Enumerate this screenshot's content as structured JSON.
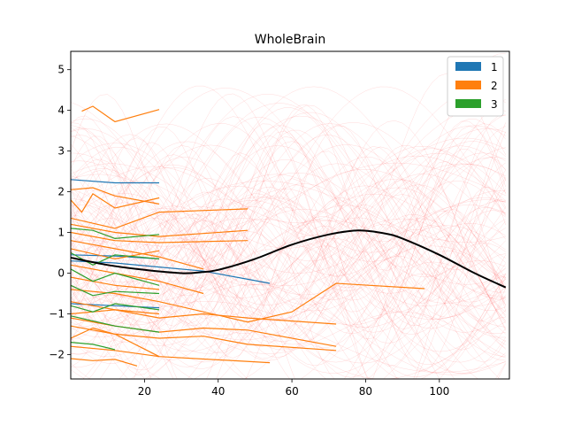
{
  "chart_data": {
    "type": "line",
    "title": "WholeBrain",
    "xlabel": "",
    "ylabel": "",
    "xlim": [
      0,
      119
    ],
    "ylim": [
      -2.6,
      5.45
    ],
    "xticks": [
      20,
      40,
      60,
      80,
      100
    ],
    "yticks": [
      -2,
      -1,
      0,
      1,
      2,
      3,
      4,
      5
    ],
    "grid": false,
    "legend_position": "top-right",
    "legend": [
      {
        "label": "1",
        "color": "#1f77b4"
      },
      {
        "label": "2",
        "color": "#ff7f0e"
      },
      {
        "label": "3",
        "color": "#2ca02c"
      }
    ],
    "background_curves": {
      "color": "#ff0000",
      "opacity": 0.15,
      "count": 130,
      "description_of_form": "thin sinusoidal sample curves"
    },
    "mean_curve": {
      "color": "#000000",
      "x": [
        0,
        10,
        20,
        30,
        35,
        40,
        50,
        60,
        70,
        78,
        85,
        90,
        100,
        110,
        118
      ],
      "y": [
        0.38,
        0.2,
        0.08,
        0.0,
        0.02,
        0.08,
        0.35,
        0.7,
        0.95,
        1.05,
        0.98,
        0.85,
        0.45,
        -0.02,
        -0.35
      ]
    },
    "series": [
      {
        "group": "1",
        "color": "#1f77b4",
        "x": [
          0,
          12,
          24
        ],
        "y": [
          2.3,
          2.22,
          2.22
        ]
      },
      {
        "group": "1",
        "color": "#1f77b4",
        "x": [
          0,
          12,
          24,
          36,
          48,
          54
        ],
        "y": [
          0.3,
          0.25,
          0.15,
          0.05,
          -0.15,
          -0.25
        ]
      },
      {
        "group": "1",
        "color": "#1f77b4",
        "x": [
          0,
          12,
          24
        ],
        "y": [
          -0.75,
          -0.8,
          -0.85
        ]
      },
      {
        "group": "1",
        "color": "#1f77b4",
        "x": [
          0,
          12,
          24
        ],
        "y": [
          0.45,
          0.42,
          0.35
        ]
      },
      {
        "group": "2",
        "color": "#ff7f0e",
        "x": [
          3,
          6,
          12,
          24
        ],
        "y": [
          3.98,
          4.1,
          3.72,
          4.02
        ]
      },
      {
        "group": "2",
        "color": "#ff7f0e",
        "x": [
          0,
          6,
          12,
          24
        ],
        "y": [
          2.05,
          2.1,
          1.9,
          1.7
        ]
      },
      {
        "group": "2",
        "color": "#ff7f0e",
        "x": [
          0,
          3,
          6,
          12,
          24
        ],
        "y": [
          1.8,
          1.5,
          1.95,
          1.6,
          1.85
        ]
      },
      {
        "group": "2",
        "color": "#ff7f0e",
        "x": [
          0,
          12,
          24,
          48
        ],
        "y": [
          1.35,
          1.1,
          1.5,
          1.58
        ]
      },
      {
        "group": "2",
        "color": "#ff7f0e",
        "x": [
          0,
          12,
          24,
          48
        ],
        "y": [
          1.2,
          1.0,
          0.9,
          1.05
        ]
      },
      {
        "group": "2",
        "color": "#ff7f0e",
        "x": [
          0,
          12,
          24,
          48
        ],
        "y": [
          1.0,
          0.8,
          0.75,
          0.8
        ]
      },
      {
        "group": "2",
        "color": "#ff7f0e",
        "x": [
          0,
          12,
          24,
          36
        ],
        "y": [
          0.8,
          0.6,
          0.4,
          0.1
        ]
      },
      {
        "group": "2",
        "color": "#ff7f0e",
        "x": [
          0,
          12,
          24
        ],
        "y": [
          0.6,
          0.35,
          0.55
        ]
      },
      {
        "group": "2",
        "color": "#ff7f0e",
        "x": [
          0,
          12,
          24,
          36
        ],
        "y": [
          0.2,
          0.0,
          -0.2,
          -0.5
        ]
      },
      {
        "group": "2",
        "color": "#ff7f0e",
        "x": [
          0,
          12,
          24
        ],
        "y": [
          -0.1,
          -0.3,
          -0.4
        ]
      },
      {
        "group": "2",
        "color": "#ff7f0e",
        "x": [
          0,
          12,
          24,
          48,
          60,
          72,
          96
        ],
        "y": [
          -0.4,
          -0.5,
          -0.7,
          -1.2,
          -0.95,
          -0.25,
          -0.38
        ]
      },
      {
        "group": "2",
        "color": "#ff7f0e",
        "x": [
          0,
          12,
          24
        ],
        "y": [
          -0.7,
          -0.9,
          -1.0
        ]
      },
      {
        "group": "2",
        "color": "#ff7f0e",
        "x": [
          0,
          12,
          24,
          36,
          48,
          72
        ],
        "y": [
          -1.0,
          -0.9,
          -1.1,
          -1.0,
          -1.1,
          -1.25
        ]
      },
      {
        "group": "2",
        "color": "#ff7f0e",
        "x": [
          0,
          12,
          24,
          36,
          48,
          72
        ],
        "y": [
          -1.1,
          -1.3,
          -1.45,
          -1.35,
          -1.4,
          -1.8
        ]
      },
      {
        "group": "2",
        "color": "#ff7f0e",
        "x": [
          0,
          6,
          12,
          24,
          36,
          48,
          72
        ],
        "y": [
          -1.6,
          -1.35,
          -1.5,
          -1.6,
          -1.55,
          -1.75,
          -1.9
        ]
      },
      {
        "group": "2",
        "color": "#ff7f0e",
        "x": [
          0,
          12,
          24
        ],
        "y": [
          -1.3,
          -1.5,
          -2.05
        ]
      },
      {
        "group": "2",
        "color": "#ff7f0e",
        "x": [
          0,
          6,
          12,
          18
        ],
        "y": [
          -2.1,
          -2.15,
          -2.12,
          -2.28
        ]
      },
      {
        "group": "2",
        "color": "#ff7f0e",
        "x": [
          0,
          12,
          24,
          54
        ],
        "y": [
          -1.8,
          -1.9,
          -2.05,
          -2.2
        ]
      },
      {
        "group": "3",
        "color": "#2ca02c",
        "x": [
          0,
          6,
          12,
          24
        ],
        "y": [
          1.1,
          1.05,
          0.85,
          0.95
        ]
      },
      {
        "group": "3",
        "color": "#2ca02c",
        "x": [
          0,
          6,
          12,
          24
        ],
        "y": [
          0.5,
          0.2,
          0.45,
          0.35
        ]
      },
      {
        "group": "3",
        "color": "#2ca02c",
        "x": [
          0,
          6,
          12,
          24
        ],
        "y": [
          0.1,
          -0.2,
          0.0,
          -0.3
        ]
      },
      {
        "group": "3",
        "color": "#2ca02c",
        "x": [
          0,
          6,
          12,
          24
        ],
        "y": [
          -0.3,
          -0.55,
          -0.45,
          -0.5
        ]
      },
      {
        "group": "3",
        "color": "#2ca02c",
        "x": [
          0,
          6,
          12,
          24
        ],
        "y": [
          -0.8,
          -0.95,
          -0.75,
          -0.9
        ]
      },
      {
        "group": "3",
        "color": "#2ca02c",
        "x": [
          0,
          12,
          24
        ],
        "y": [
          -1.05,
          -1.3,
          -1.45
        ]
      },
      {
        "group": "3",
        "color": "#2ca02c",
        "x": [
          0,
          6,
          12
        ],
        "y": [
          -1.7,
          -1.75,
          -1.88
        ]
      }
    ]
  }
}
